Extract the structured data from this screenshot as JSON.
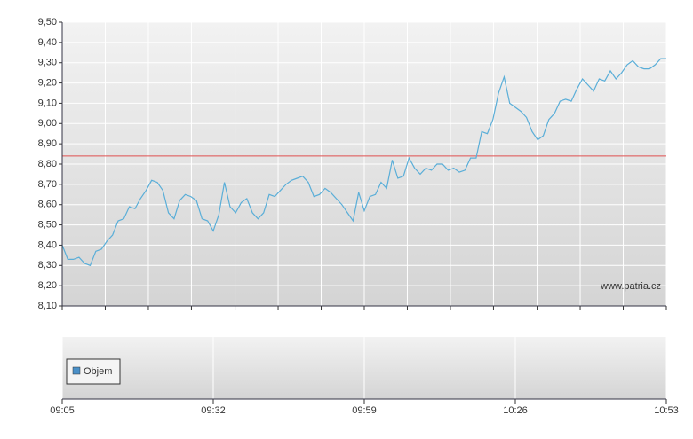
{
  "chart_data": [
    {
      "type": "line",
      "x": [
        545,
        546,
        547,
        548,
        549,
        550,
        551,
        552,
        553,
        554,
        555,
        556,
        557,
        558,
        559,
        560,
        561,
        562,
        563,
        564,
        565,
        566,
        567,
        568,
        569,
        570,
        571,
        572,
        573,
        574,
        575,
        576,
        577,
        578,
        579,
        580,
        581,
        582,
        583,
        584,
        585,
        586,
        587,
        588,
        589,
        590,
        591,
        592,
        593,
        594,
        595,
        596,
        597,
        598,
        599,
        600,
        601,
        602,
        603,
        604,
        605,
        606,
        607,
        608,
        609,
        610,
        611,
        612,
        613,
        614,
        615,
        616,
        617,
        618,
        619,
        620,
        621,
        622,
        623,
        624,
        625,
        626,
        627,
        628,
        629,
        630,
        631,
        632,
        633,
        634,
        635,
        636,
        637,
        638,
        639,
        640,
        641,
        642,
        643,
        644,
        645,
        646,
        647,
        648,
        649,
        650,
        651,
        652,
        653
      ],
      "values": [
        8.4,
        8.33,
        8.33,
        8.34,
        8.31,
        8.3,
        8.37,
        8.38,
        8.42,
        8.45,
        8.52,
        8.53,
        8.59,
        8.58,
        8.63,
        8.67,
        8.72,
        8.71,
        8.67,
        8.56,
        8.53,
        8.62,
        8.65,
        8.64,
        8.62,
        8.53,
        8.52,
        8.47,
        8.55,
        8.71,
        8.59,
        8.56,
        8.61,
        8.63,
        8.56,
        8.53,
        8.56,
        8.65,
        8.64,
        8.67,
        8.7,
        8.72,
        8.73,
        8.74,
        8.71,
        8.64,
        8.65,
        8.68,
        8.66,
        8.63,
        8.6,
        8.56,
        8.52,
        8.66,
        8.57,
        8.64,
        8.65,
        8.71,
        8.68,
        8.82,
        8.73,
        8.74,
        8.83,
        8.78,
        8.75,
        8.78,
        8.77,
        8.8,
        8.8,
        8.77,
        8.78,
        8.76,
        8.77,
        8.83,
        8.83,
        8.96,
        8.95,
        9.02,
        9.15,
        9.23,
        9.1,
        9.08,
        9.06,
        9.03,
        8.96,
        8.92,
        8.94,
        9.02,
        9.05,
        9.11,
        9.12,
        9.11,
        9.17,
        9.22,
        9.19,
        9.16,
        9.22,
        9.21,
        9.26,
        9.22,
        9.25,
        9.29,
        9.31,
        9.28,
        9.27,
        9.27,
        9.29,
        9.32,
        9.32
      ],
      "color": "#5aaed8",
      "xlim": [
        545,
        653
      ],
      "xminorticks": [
        545,
        552.7,
        560.4,
        568.1,
        575.9,
        583.6,
        591.3,
        599,
        606.7,
        614.4,
        622.1,
        629.9,
        637.6,
        645.3,
        653
      ],
      "ylim": [
        8.1,
        9.5
      ],
      "yticks": [
        {
          "value": 8.1,
          "label": "8,10"
        },
        {
          "value": 8.2,
          "label": "8,20"
        },
        {
          "value": 8.3,
          "label": "8,30"
        },
        {
          "value": 8.4,
          "label": "8,40"
        },
        {
          "value": 8.5,
          "label": "8,50"
        },
        {
          "value": 8.6,
          "label": "8,60"
        },
        {
          "value": 8.7,
          "label": "8,70"
        },
        {
          "value": 8.8,
          "label": "8,80"
        },
        {
          "value": 8.9,
          "label": "8,90"
        },
        {
          "value": 9.0,
          "label": "9,00"
        },
        {
          "value": 9.1,
          "label": "9,10"
        },
        {
          "value": 9.2,
          "label": "9,20"
        },
        {
          "value": 9.3,
          "label": "9,30"
        },
        {
          "value": 9.4,
          "label": "9,40"
        },
        {
          "value": 9.5,
          "label": "9,50"
        }
      ],
      "reference_line": 8.84,
      "reference_color": "#e05050",
      "watermark": "www.patria.cz",
      "grid": true
    },
    {
      "type": "bar",
      "series": [
        {
          "name": "Objem",
          "color": "#4a90c8",
          "values": []
        }
      ],
      "xlim": [
        545,
        653
      ],
      "xticks": [
        {
          "value": 545,
          "label": "09:05"
        },
        {
          "value": 572,
          "label": "09:32"
        },
        {
          "value": 599,
          "label": "09:59"
        },
        {
          "value": 626,
          "label": "10:26"
        },
        {
          "value": 653,
          "label": "10:53"
        }
      ],
      "grid": true
    }
  ]
}
